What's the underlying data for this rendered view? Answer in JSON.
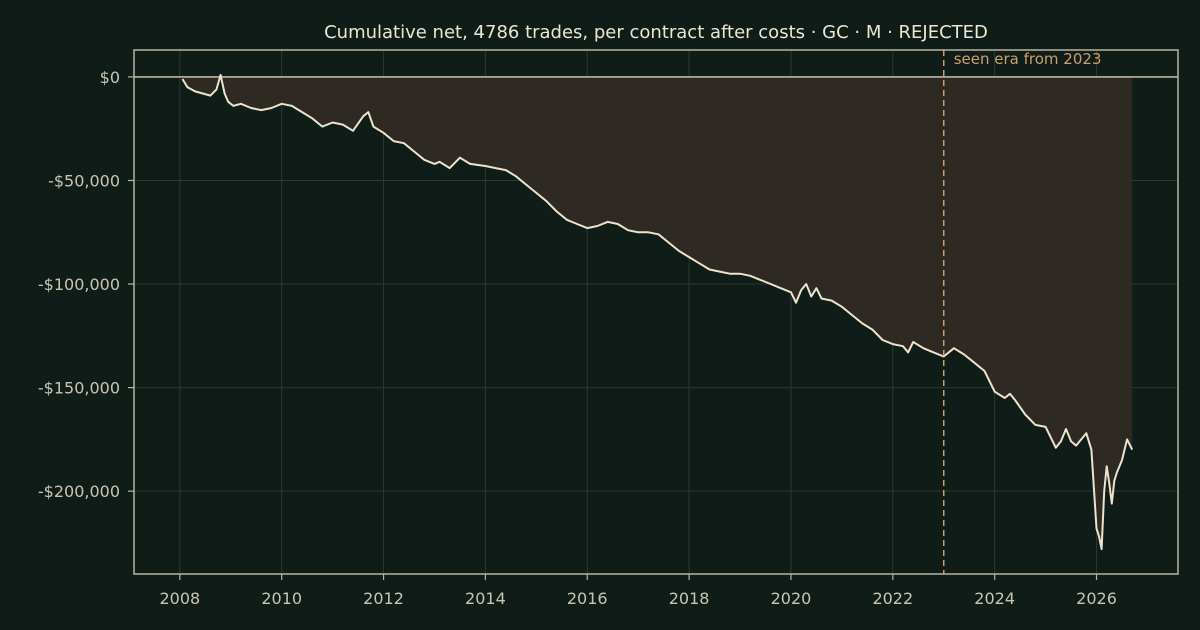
{
  "chart_data": {
    "type": "area",
    "title": "Cumulative net, 4786 trades, per contract after costs  ·  GC · M · REJECTED",
    "xlabel": "",
    "ylabel": "",
    "xlim": [
      2007.1,
      2027.6
    ],
    "ylim": [
      -240000,
      13000
    ],
    "x_ticks": [
      2008,
      2010,
      2012,
      2014,
      2016,
      2018,
      2020,
      2022,
      2024,
      2026
    ],
    "x_tick_labels": [
      "2008",
      "2010",
      "2012",
      "2014",
      "2016",
      "2018",
      "2020",
      "2022",
      "2024",
      "2026"
    ],
    "y_ticks": [
      0,
      -50000,
      -100000,
      -150000,
      -200000
    ],
    "y_tick_labels": [
      "$0",
      "-$50,000",
      "-$100,000",
      "-$150,000",
      "-$200,000"
    ],
    "grid": true,
    "zero_line": 0,
    "annotation": {
      "x": 2023.0,
      "label": "seen era from 2023"
    },
    "colors": {
      "background": "#101c17",
      "line": "#ece4cc",
      "fill": "#302a24",
      "marker_line": "#c9a068",
      "frame": "#b9b4a2"
    },
    "series": [
      {
        "x": [
          2008.05,
          2008.15,
          2008.3,
          2008.45,
          2008.6,
          2008.72,
          2008.8,
          2008.88,
          2008.95,
          2009.05,
          2009.2,
          2009.4,
          2009.6,
          2009.8,
          2010.0,
          2010.2,
          2010.4,
          2010.6,
          2010.8,
          2011.0,
          2011.2,
          2011.4,
          2011.6,
          2011.7,
          2011.8,
          2012.0,
          2012.2,
          2012.4,
          2012.6,
          2012.8,
          2013.0,
          2013.1,
          2013.3,
          2013.5,
          2013.7,
          2014.0,
          2014.2,
          2014.4,
          2014.6,
          2014.8,
          2015.0,
          2015.2,
          2015.4,
          2015.6,
          2015.8,
          2016.0,
          2016.2,
          2016.4,
          2016.6,
          2016.8,
          2017.0,
          2017.2,
          2017.4,
          2017.6,
          2017.8,
          2018.0,
          2018.2,
          2018.4,
          2018.6,
          2018.8,
          2019.0,
          2019.2,
          2019.4,
          2019.6,
          2019.8,
          2020.0,
          2020.1,
          2020.2,
          2020.3,
          2020.4,
          2020.5,
          2020.6,
          2020.8,
          2021.0,
          2021.2,
          2021.4,
          2021.6,
          2021.8,
          2022.0,
          2022.2,
          2022.3,
          2022.4,
          2022.6,
          2022.8,
          2023.0,
          2023.2,
          2023.4,
          2023.6,
          2023.8,
          2024.0,
          2024.2,
          2024.3,
          2024.4,
          2024.6,
          2024.8,
          2025.0,
          2025.1,
          2025.2,
          2025.3,
          2025.4,
          2025.5,
          2025.6,
          2025.7,
          2025.8,
          2025.9,
          2026.0,
          2026.05,
          2026.1,
          2026.15,
          2026.2,
          2026.25,
          2026.3,
          2026.35,
          2026.4,
          2026.5,
          2026.6,
          2026.7
        ],
        "y": [
          -1000,
          -5000,
          -7000,
          -8000,
          -9000,
          -6000,
          1000,
          -8000,
          -12000,
          -14000,
          -13000,
          -15000,
          -16000,
          -15000,
          -13000,
          -14000,
          -17000,
          -20000,
          -24000,
          -22000,
          -23000,
          -26000,
          -19000,
          -17000,
          -24000,
          -27000,
          -31000,
          -32000,
          -36000,
          -40000,
          -42000,
          -41000,
          -44000,
          -39000,
          -42000,
          -43000,
          -44000,
          -45000,
          -48000,
          -52000,
          -56000,
          -60000,
          -65000,
          -69000,
          -71000,
          -73000,
          -72000,
          -70000,
          -71000,
          -74000,
          -75000,
          -75000,
          -76000,
          -80000,
          -84000,
          -87000,
          -90000,
          -93000,
          -94000,
          -95000,
          -95000,
          -96000,
          -98000,
          -100000,
          -102000,
          -104000,
          -109000,
          -103000,
          -100000,
          -106000,
          -102000,
          -107000,
          -108000,
          -111000,
          -115000,
          -119000,
          -122000,
          -127000,
          -129000,
          -130000,
          -133000,
          -128000,
          -131000,
          -133000,
          -135000,
          -131000,
          -134000,
          -138000,
          -142000,
          -152000,
          -155000,
          -153000,
          -156000,
          -163000,
          -168000,
          -169000,
          -174000,
          -179000,
          -176000,
          -170000,
          -176000,
          -178000,
          -175000,
          -172000,
          -180000,
          -218000,
          -222000,
          -228000,
          -200000,
          -188000,
          -196000,
          -206000,
          -195000,
          -191000,
          -185000,
          -175000,
          -180000
        ]
      }
    ]
  }
}
